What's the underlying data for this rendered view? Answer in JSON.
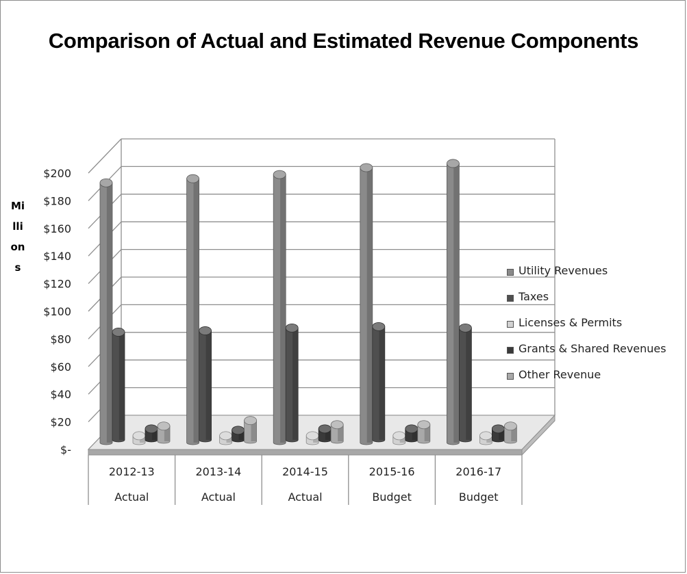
{
  "chart_data": {
    "type": "bar",
    "title": "Comparison of Actual and Estimated Revenue Components",
    "ylabel": "Millions",
    "xlabel": "",
    "ylim": [
      0,
      200
    ],
    "yticks": [
      "$-",
      "$20",
      "$40",
      "$60",
      "$80",
      "$100",
      "$120",
      "$140",
      "$160",
      "$180",
      "$200"
    ],
    "categories": [
      "2012-13",
      "2013-14",
      "2014-15",
      "2015-16",
      "2016-17"
    ],
    "category_sublabels": [
      "Actual",
      "Actual",
      "Actual",
      "Budget",
      "Budget"
    ],
    "series": [
      {
        "name": "Utility Revenues",
        "values": [
          188,
          191,
          194,
          199,
          202
        ],
        "color": "#8a8a8a"
      },
      {
        "name": "Taxes",
        "values": [
          78,
          79,
          81,
          82,
          81
        ],
        "color": "#4f4f4f"
      },
      {
        "name": "Licenses & Permits",
        "values": [
          5,
          5,
          5,
          5,
          5
        ],
        "color": "#d2d2d2"
      },
      {
        "name": "Grants & Shared Revenues",
        "values": [
          8,
          7,
          8,
          8,
          8
        ],
        "color": "#3a3a3a"
      },
      {
        "name": "Other Revenue",
        "values": [
          11,
          15,
          12,
          12,
          11
        ],
        "color": "#a9a9a9"
      }
    ],
    "legend_position": "right",
    "grid": true
  }
}
